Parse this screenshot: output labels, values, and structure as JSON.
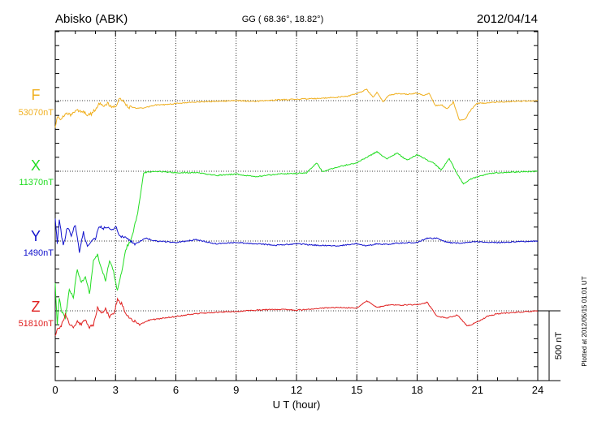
{
  "header": {
    "station": "Abisko (ABK)",
    "coords": "GG ( 68.36°,  18.82°)",
    "date": "2012/04/14"
  },
  "footer": {
    "plotted_note": "Plotted at 2012/05/15 01:01  UT"
  },
  "scale_bar": {
    "label": "500 nT",
    "value_nT": 500
  },
  "colors": {
    "F": "#f0b020",
    "X": "#22dd22",
    "Y": "#1010cc",
    "Z": "#e02020",
    "axis": "#000000"
  },
  "chart_data": {
    "type": "line",
    "title": "Abisko (ABK)",
    "xlabel": "U T (hour)",
    "ylabel": "",
    "xlim": [
      0,
      24
    ],
    "x_ticks": [
      "0",
      "3",
      "6",
      "9",
      "12",
      "15",
      "18",
      "21",
      "24"
    ],
    "grid": true,
    "y_units": "nT",
    "series": [
      {
        "name": "F",
        "baseline_label": "53070nT",
        "baseline_nT": 53070,
        "x": [
          0,
          0.1,
          0.3,
          0.5,
          0.8,
          1.0,
          1.2,
          1.4,
          1.6,
          1.8,
          2.0,
          2.2,
          2.4,
          2.6,
          2.8,
          3.0,
          3.2,
          3.4,
          3.6,
          4.0,
          4.5,
          5.0,
          5.5,
          6.0,
          7.0,
          8.0,
          9.0,
          10.0,
          11.0,
          12.0,
          13.0,
          14.0,
          14.5,
          15.0,
          15.5,
          15.8,
          16.0,
          16.3,
          16.6,
          17.0,
          17.5,
          18.0,
          18.3,
          18.6,
          18.9,
          19.2,
          19.5,
          19.8,
          20.1,
          20.4,
          20.7,
          21.0,
          21.5,
          22.0,
          23.0,
          24.0
        ],
        "y": [
          -190,
          -120,
          -130,
          -90,
          -100,
          -80,
          -70,
          -75,
          -100,
          -95,
          -60,
          -20,
          -35,
          -20,
          -50,
          -40,
          10,
          -5,
          -45,
          -55,
          -50,
          -30,
          -30,
          -20,
          -10,
          -5,
          0,
          -5,
          5,
          10,
          15,
          25,
          30,
          50,
          80,
          25,
          60,
          -10,
          40,
          50,
          45,
          55,
          35,
          50,
          -35,
          -30,
          -60,
          -10,
          -140,
          -130,
          -60,
          -20,
          -15,
          -10,
          -5,
          0
        ]
      },
      {
        "name": "X",
        "baseline_label": "11370nT",
        "baseline_nT": 11370,
        "x": [
          0,
          0.1,
          0.2,
          0.3,
          0.5,
          0.7,
          0.9,
          1.1,
          1.3,
          1.5,
          1.7,
          1.9,
          2.1,
          2.3,
          2.5,
          2.7,
          2.9,
          3.1,
          3.3,
          3.5,
          3.8,
          4.1,
          4.4,
          5.0,
          6.0,
          7.0,
          8.0,
          9.0,
          10.0,
          11.0,
          12.0,
          12.5,
          13.0,
          13.3,
          14.0,
          15.0,
          15.5,
          16.0,
          16.5,
          17.0,
          17.5,
          18.0,
          18.5,
          18.8,
          19.2,
          19.6,
          20.0,
          20.3,
          20.6,
          21.0,
          21.5,
          22.0,
          23.0,
          24.0
        ],
        "y": [
          -800,
          -1100,
          -900,
          -1000,
          -1050,
          -850,
          -900,
          -700,
          -800,
          -750,
          -880,
          -650,
          -600,
          -700,
          -780,
          -640,
          -720,
          -860,
          -720,
          -560,
          -480,
          -300,
          -10,
          0,
          -10,
          -10,
          -30,
          -20,
          -40,
          -20,
          -15,
          -10,
          60,
          -5,
          30,
          60,
          100,
          140,
          90,
          130,
          80,
          120,
          80,
          60,
          10,
          90,
          -20,
          -90,
          -60,
          -40,
          -20,
          -10,
          -5,
          0
        ]
      },
      {
        "name": "Y",
        "baseline_label": "1490nT",
        "baseline_nT": 1490,
        "x": [
          0,
          0.1,
          0.2,
          0.4,
          0.6,
          0.8,
          1.0,
          1.2,
          1.4,
          1.6,
          1.8,
          2.0,
          2.2,
          2.4,
          2.6,
          2.8,
          3.0,
          3.2,
          3.5,
          4.0,
          4.5,
          5.0,
          6.0,
          7.0,
          8.0,
          9.0,
          10.0,
          11.0,
          12.0,
          13.0,
          14.0,
          15.0,
          15.5,
          16.0,
          16.5,
          17.0,
          18.0,
          18.5,
          19.0,
          19.5,
          20.0,
          21.0,
          22.0,
          23.0,
          24.0
        ],
        "y": [
          160,
          -20,
          150,
          -40,
          100,
          40,
          120,
          -80,
          60,
          -40,
          0,
          20,
          110,
          90,
          100,
          70,
          110,
          40,
          20,
          -20,
          20,
          0,
          -10,
          10,
          -20,
          -10,
          -20,
          -30,
          -20,
          -30,
          -35,
          -20,
          -35,
          -20,
          -25,
          -15,
          -10,
          20,
          20,
          -10,
          -15,
          -5,
          -10,
          -5,
          0
        ]
      },
      {
        "name": "Z",
        "baseline_label": "51810nT",
        "baseline_nT": 51810,
        "x": [
          0,
          0.1,
          0.3,
          0.5,
          0.7,
          0.9,
          1.1,
          1.3,
          1.5,
          1.7,
          1.9,
          2.1,
          2.3,
          2.5,
          2.7,
          2.9,
          3.1,
          3.3,
          3.5,
          3.8,
          4.2,
          4.6,
          5.0,
          5.5,
          6.0,
          7.0,
          8.0,
          9.0,
          10.0,
          11.0,
          12.0,
          13.0,
          14.0,
          15.0,
          15.5,
          16.0,
          16.5,
          17.0,
          18.0,
          18.5,
          19.0,
          19.5,
          20.0,
          20.5,
          21.0,
          21.5,
          22.0,
          23.0,
          24.0
        ],
        "y": [
          -180,
          -130,
          -110,
          -30,
          -90,
          -120,
          -80,
          -100,
          -60,
          -120,
          -100,
          20,
          -20,
          10,
          -40,
          -30,
          80,
          50,
          -20,
          -60,
          -100,
          -70,
          -60,
          -50,
          -40,
          -20,
          -10,
          -5,
          5,
          10,
          5,
          15,
          25,
          20,
          70,
          25,
          40,
          40,
          45,
          60,
          -40,
          -50,
          -30,
          -110,
          -80,
          -40,
          -20,
          -10,
          0
        ]
      }
    ]
  }
}
